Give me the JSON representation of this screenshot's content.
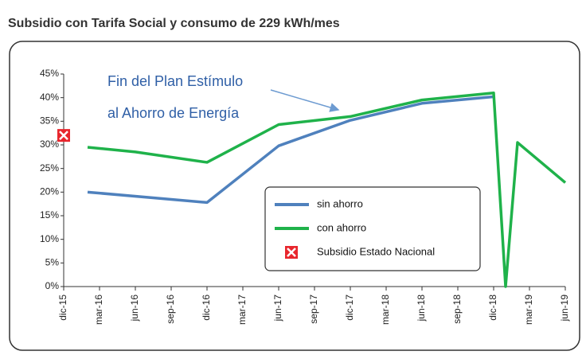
{
  "chart_data": {
    "type": "line",
    "title": "Subsidio con Tarifa Social y consumo de 229 kWh/mes",
    "annotations": [
      "Fin del Plan Estímulo",
      "al Ahorro de Energía"
    ],
    "xlim": [
      0,
      42
    ],
    "xticks": [
      {
        "value": 0,
        "label": "dic-15"
      },
      {
        "value": 3,
        "label": "mar-16"
      },
      {
        "value": 6,
        "label": "jun-16"
      },
      {
        "value": 9,
        "label": "sep-16"
      },
      {
        "value": 12,
        "label": "dic-16"
      },
      {
        "value": 15,
        "label": "mar-17"
      },
      {
        "value": 18,
        "label": "jun-17"
      },
      {
        "value": 21,
        "label": "sep-17"
      },
      {
        "value": 24,
        "label": "dic-17"
      },
      {
        "value": 27,
        "label": "mar-18"
      },
      {
        "value": 30,
        "label": "jun-18"
      },
      {
        "value": 33,
        "label": "sep-18"
      },
      {
        "value": 36,
        "label": "dic-18"
      },
      {
        "value": 39,
        "label": "mar-19"
      },
      {
        "value": 42,
        "label": "jun-19"
      }
    ],
    "ylim": [
      0,
      45
    ],
    "yticks": [
      {
        "value": 0,
        "label": "0%"
      },
      {
        "value": 5,
        "label": "5%"
      },
      {
        "value": 10,
        "label": "10%"
      },
      {
        "value": 15,
        "label": "15%"
      },
      {
        "value": 20,
        "label": "20%"
      },
      {
        "value": 25,
        "label": "25%"
      },
      {
        "value": 30,
        "label": "30%"
      },
      {
        "value": 35,
        "label": "35%"
      },
      {
        "value": 40,
        "label": "40%"
      },
      {
        "value": 45,
        "label": "45%"
      }
    ],
    "series": [
      {
        "name": "sin ahorro",
        "color": "#4f81bd",
        "x": [
          2,
          12,
          18,
          24,
          30,
          36
        ],
        "values": [
          20,
          17.8,
          29.8,
          35.2,
          38.8,
          40.2
        ]
      },
      {
        "name": "con ahorro",
        "color": "#1fb24a",
        "x": [
          2,
          6,
          12,
          18,
          24,
          30,
          36,
          37,
          38,
          42
        ],
        "values": [
          29.5,
          28.5,
          26.3,
          34.3,
          36,
          39.5,
          41,
          0,
          30.5,
          22
        ]
      },
      {
        "name": "Subsidio Estado Nacional",
        "color": "#e8262d",
        "marker": "x-box",
        "x": [
          0
        ],
        "values": [
          32
        ]
      }
    ]
  }
}
